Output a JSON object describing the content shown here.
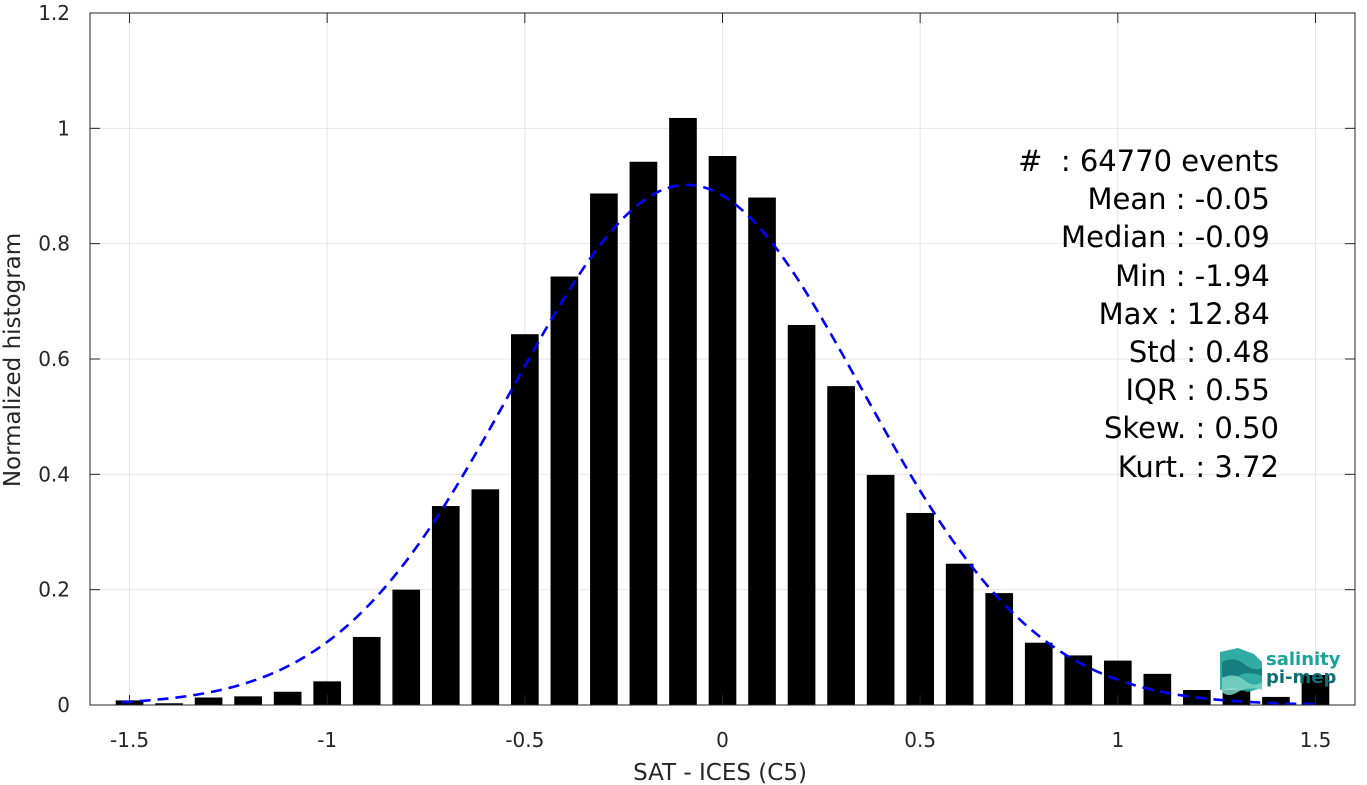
{
  "chart_data": {
    "type": "bar",
    "xlabel": "SAT - ICES (C5)",
    "ylabel": "Normalized histogram",
    "xlim": [
      -1.6,
      1.6
    ],
    "ylim": [
      0,
      1.2
    ],
    "xticks": [
      "-1.5",
      "-1",
      "-0.5",
      "0",
      "0.5",
      "1",
      "1.5"
    ],
    "xtick_values": [
      -1.5,
      -1,
      -0.5,
      0,
      0.5,
      1,
      1.5
    ],
    "yticks": [
      "0",
      "0.2",
      "0.4",
      "0.6",
      "0.8",
      "1",
      "1.2"
    ],
    "ytick_values": [
      0,
      0.2,
      0.4,
      0.6,
      0.8,
      1,
      1.2
    ],
    "grid": true,
    "bar_color": "#000000",
    "bin_width": 0.1,
    "bins": [
      {
        "x": -1.5,
        "y": 0.008
      },
      {
        "x": -1.4,
        "y": 0.003
      },
      {
        "x": -1.3,
        "y": 0.013
      },
      {
        "x": -1.2,
        "y": 0.015
      },
      {
        "x": -1.1,
        "y": 0.023
      },
      {
        "x": -1.0,
        "y": 0.041
      },
      {
        "x": -0.9,
        "y": 0.118
      },
      {
        "x": -0.8,
        "y": 0.2
      },
      {
        "x": -0.7,
        "y": 0.345
      },
      {
        "x": -0.6,
        "y": 0.374
      },
      {
        "x": -0.5,
        "y": 0.643
      },
      {
        "x": -0.4,
        "y": 0.743
      },
      {
        "x": -0.3,
        "y": 0.887
      },
      {
        "x": -0.2,
        "y": 0.942
      },
      {
        "x": -0.1,
        "y": 1.018
      },
      {
        "x": 0.0,
        "y": 0.952
      },
      {
        "x": 0.1,
        "y": 0.88
      },
      {
        "x": 0.2,
        "y": 0.659
      },
      {
        "x": 0.3,
        "y": 0.553
      },
      {
        "x": 0.4,
        "y": 0.399
      },
      {
        "x": 0.5,
        "y": 0.333
      },
      {
        "x": 0.6,
        "y": 0.245
      },
      {
        "x": 0.7,
        "y": 0.194
      },
      {
        "x": 0.8,
        "y": 0.108
      },
      {
        "x": 0.9,
        "y": 0.086
      },
      {
        "x": 1.0,
        "y": 0.077
      },
      {
        "x": 1.1,
        "y": 0.054
      },
      {
        "x": 1.2,
        "y": 0.026
      },
      {
        "x": 1.3,
        "y": 0.026
      },
      {
        "x": 1.4,
        "y": 0.014
      },
      {
        "x": 1.5,
        "y": 0.052
      }
    ],
    "fit": {
      "type": "gaussian",
      "mean": -0.09,
      "peak": 0.902,
      "sigma": 0.443,
      "x_range": [
        -1.52,
        1.5
      ],
      "color": "#0000ff",
      "line_style": "dashed"
    },
    "annotations": [
      "#  : 64770 events",
      "Mean : -0.05 ",
      "Median : -0.09 ",
      "Min : -1.94 ",
      "Max : 12.84 ",
      "Std : 0.48 ",
      "IQR : 0.55 ",
      "Skew. : 0.50",
      "Kurt. : 3.72"
    ]
  },
  "logo": {
    "line1": "salinity",
    "line2": "pi-mep",
    "color_primary": "#1aa39a",
    "color_secondary": "#0f6e73"
  }
}
